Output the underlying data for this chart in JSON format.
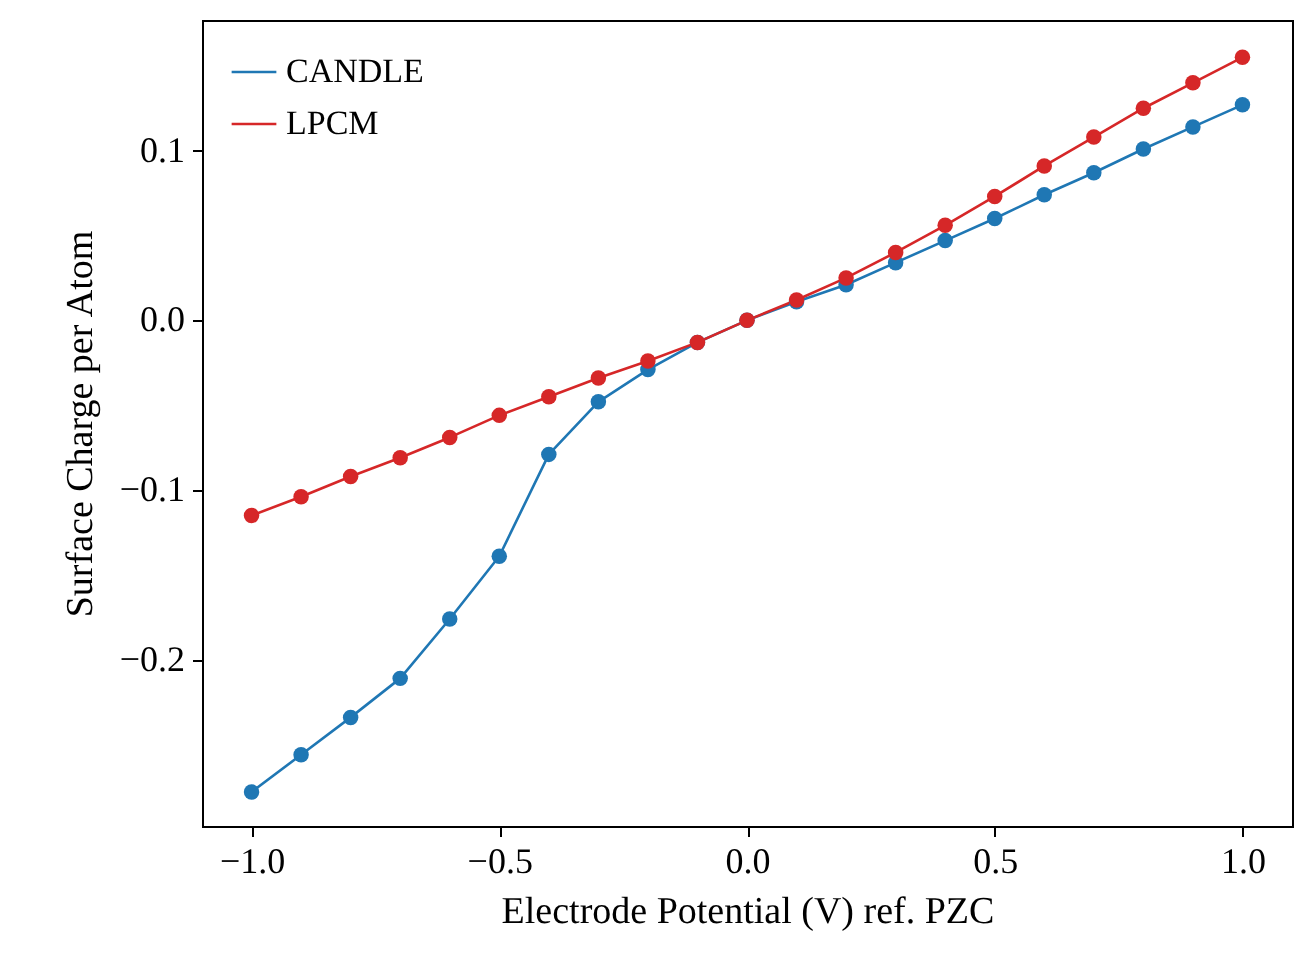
{
  "chart_data": {
    "type": "line",
    "xlabel": "Electrode Potential (V) ref. PZC",
    "ylabel": "Surface Charge per Atom",
    "x": [
      -1.0,
      -0.9,
      -0.8,
      -0.7,
      -0.6,
      -0.5,
      -0.4,
      -0.3,
      -0.2,
      -0.1,
      0.0,
      0.1,
      0.2,
      0.3,
      0.4,
      0.5,
      0.6,
      0.7,
      0.8,
      0.9,
      1.0
    ],
    "series": [
      {
        "name": "CANDLE",
        "color": "#1f77b4",
        "values": [
          -0.278,
          -0.256,
          -0.234,
          -0.211,
          -0.176,
          -0.139,
          -0.079,
          -0.048,
          -0.029,
          -0.013,
          0.0,
          0.011,
          0.021,
          0.034,
          0.047,
          0.06,
          0.074,
          0.087,
          0.101,
          0.114,
          0.127
        ]
      },
      {
        "name": "LPCM",
        "color": "#d62728",
        "values": [
          -0.115,
          -0.104,
          -0.092,
          -0.081,
          -0.069,
          -0.056,
          -0.045,
          -0.034,
          -0.024,
          -0.013,
          0.0,
          0.012,
          0.025,
          0.04,
          0.056,
          0.073,
          0.091,
          0.108,
          0.125,
          0.14,
          0.155
        ]
      }
    ],
    "xlim": [
      -1.1,
      1.1
    ],
    "ylim": [
      -0.298,
      0.177
    ],
    "xticks": [
      {
        "value": -1.0,
        "label": "−1.0"
      },
      {
        "value": -0.5,
        "label": "−0.5"
      },
      {
        "value": 0.0,
        "label": "0.0"
      },
      {
        "value": 0.5,
        "label": "0.5"
      },
      {
        "value": 1.0,
        "label": "1.0"
      }
    ],
    "yticks": [
      {
        "value": -0.2,
        "label": "−0.2"
      },
      {
        "value": -0.1,
        "label": "−0.1"
      },
      {
        "value": 0.0,
        "label": "0.0"
      },
      {
        "value": 0.1,
        "label": "0.1"
      }
    ],
    "legend": "top left",
    "marker": "circle",
    "line_style": "solid",
    "grid": false
  }
}
